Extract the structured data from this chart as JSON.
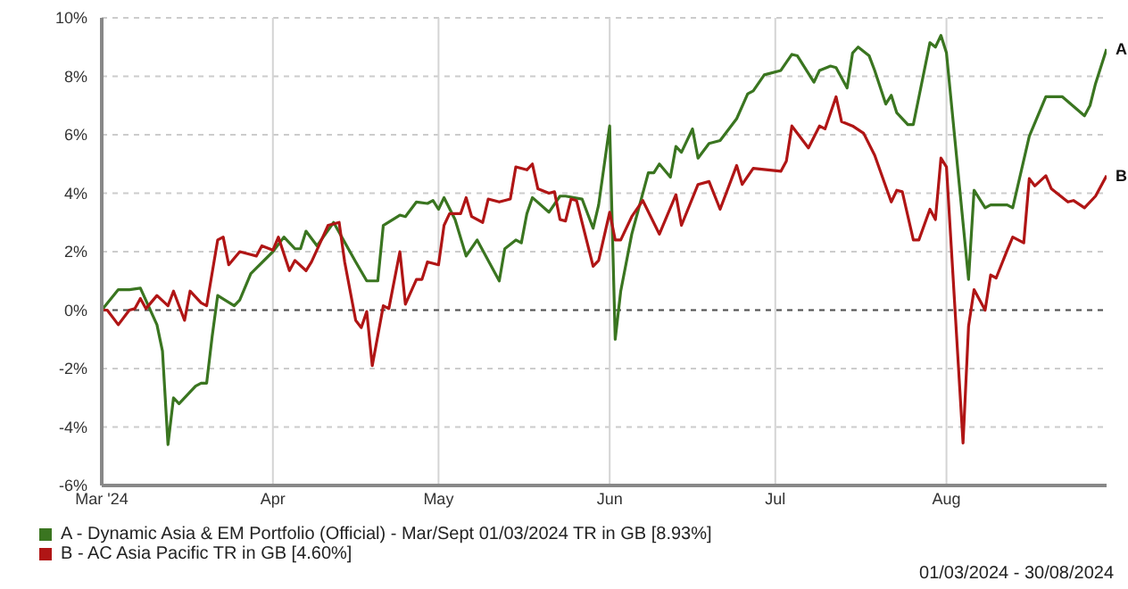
{
  "chart_data": {
    "type": "line",
    "xlim": [
      "2024-03-01",
      "2024-08-30"
    ],
    "xticks": [
      {
        "value": "2024-03-01",
        "label": "Mar '24"
      },
      {
        "value": "2024-04-01",
        "label": "Apr"
      },
      {
        "value": "2024-05-01",
        "label": "May"
      },
      {
        "value": "2024-06-01",
        "label": "Jun"
      },
      {
        "value": "2024-07-01",
        "label": "Jul"
      },
      {
        "value": "2024-08-01",
        "label": "Aug"
      }
    ],
    "ylim": [
      -6,
      10
    ],
    "yticks": [
      {
        "value": -6,
        "label": "-6%"
      },
      {
        "value": -4,
        "label": "-4%"
      },
      {
        "value": -2,
        "label": "-2%"
      },
      {
        "value": 0,
        "label": "0%"
      },
      {
        "value": 2,
        "label": "2%"
      },
      {
        "value": 4,
        "label": "4%"
      },
      {
        "value": 6,
        "label": "6%"
      },
      {
        "value": 8,
        "label": "8%"
      },
      {
        "value": 10,
        "label": "10%"
      }
    ],
    "grid": true,
    "legend": "bottom",
    "marker": "none",
    "line_style": "solid",
    "ref_lines": [
      {
        "axis": "y",
        "value": 0,
        "color": "#555555",
        "line_style": "dashed"
      }
    ],
    "annotations": [
      {
        "text": "A",
        "x": "2024-08-30",
        "y": 8.93
      },
      {
        "text": "B",
        "x": "2024-08-30",
        "y": 4.6
      },
      "01/03/2024 - 30/08/2024"
    ],
    "series": [
      {
        "name": "A - Dynamic Asia & EM Portfolio (Official) - Mar/Sept 01/03/2024 TR in GB [8.93%]",
        "color": "#3a7520",
        "x": [
          "2024-03-01",
          "2024-03-04",
          "2024-03-06",
          "2024-03-08",
          "2024-03-11",
          "2024-03-12",
          "2024-03-13",
          "2024-03-14",
          "2024-03-15",
          "2024-03-18",
          "2024-03-19",
          "2024-03-20",
          "2024-03-21",
          "2024-03-22",
          "2024-03-25",
          "2024-03-26",
          "2024-03-28",
          "2024-04-01",
          "2024-04-03",
          "2024-04-05",
          "2024-04-06",
          "2024-04-07",
          "2024-04-09",
          "2024-04-12",
          "2024-04-16",
          "2024-04-18",
          "2024-04-20",
          "2024-04-21",
          "2024-04-24",
          "2024-04-25",
          "2024-04-27",
          "2024-04-29",
          "2024-04-30",
          "2024-05-01",
          "2024-05-02",
          "2024-05-04",
          "2024-05-06",
          "2024-05-08",
          "2024-05-12",
          "2024-05-13",
          "2024-05-15",
          "2024-05-16",
          "2024-05-17",
          "2024-05-18",
          "2024-05-21",
          "2024-05-23",
          "2024-05-24",
          "2024-05-27",
          "2024-05-29",
          "2024-05-30",
          "2024-06-01",
          "2024-06-02",
          "2024-06-03",
          "2024-06-05",
          "2024-06-08",
          "2024-06-09",
          "2024-06-10",
          "2024-06-12",
          "2024-06-13",
          "2024-06-14",
          "2024-06-16",
          "2024-06-17",
          "2024-06-19",
          "2024-06-21",
          "2024-06-24",
          "2024-06-26",
          "2024-06-27",
          "2024-06-29",
          "2024-07-02",
          "2024-07-04",
          "2024-07-05",
          "2024-07-08",
          "2024-07-09",
          "2024-07-11",
          "2024-07-12",
          "2024-07-14",
          "2024-07-15",
          "2024-07-16",
          "2024-07-18",
          "2024-07-19",
          "2024-07-21",
          "2024-07-22",
          "2024-07-23",
          "2024-07-25",
          "2024-07-26",
          "2024-07-29",
          "2024-07-30",
          "2024-07-31",
          "2024-08-01",
          "2024-08-05",
          "2024-08-06",
          "2024-08-08",
          "2024-08-09",
          "2024-08-12",
          "2024-08-13",
          "2024-08-16",
          "2024-08-19",
          "2024-08-20",
          "2024-08-22",
          "2024-08-26",
          "2024-08-27",
          "2024-08-28",
          "2024-08-30"
        ],
        "values": [
          0,
          0.7,
          0.7,
          0.75,
          -0.5,
          -1.4,
          -4.6,
          -3.0,
          -3.2,
          -2.6,
          -2.5,
          -2.5,
          -0.9,
          0.5,
          0.15,
          0.35,
          1.25,
          2.0,
          2.5,
          2.1,
          2.1,
          2.7,
          2.2,
          3.0,
          1.65,
          1.0,
          1.0,
          2.9,
          3.25,
          3.2,
          3.7,
          3.65,
          3.75,
          3.45,
          3.85,
          3.1,
          1.85,
          2.4,
          1.0,
          2.1,
          2.4,
          2.3,
          3.3,
          3.85,
          3.35,
          3.9,
          3.9,
          3.8,
          2.8,
          3.6,
          6.3,
          -1.0,
          0.65,
          2.6,
          4.7,
          4.7,
          5.0,
          4.55,
          5.6,
          5.4,
          6.2,
          5.2,
          5.7,
          5.8,
          6.55,
          7.4,
          7.5,
          8.05,
          8.2,
          8.75,
          8.7,
          7.8,
          8.2,
          8.35,
          8.3,
          7.6,
          8.8,
          9.0,
          8.7,
          8.2,
          7.05,
          7.35,
          6.75,
          6.35,
          6.35,
          9.15,
          9.0,
          9.4,
          8.8,
          1.05,
          4.1,
          3.5,
          3.6,
          3.6,
          3.5,
          5.95,
          7.3,
          7.3,
          7.3,
          6.65,
          7.0,
          7.75,
          8.93
        ]
      },
      {
        "name": "B - AC Asia Pacific TR in GB [4.60%]",
        "color": "#b01515",
        "x": [
          "2024-03-01",
          "2024-03-02",
          "2024-03-04",
          "2024-03-06",
          "2024-03-07",
          "2024-03-08",
          "2024-03-09",
          "2024-03-11",
          "2024-03-13",
          "2024-03-14",
          "2024-03-16",
          "2024-03-17",
          "2024-03-19",
          "2024-03-20",
          "2024-03-22",
          "2024-03-23",
          "2024-03-24",
          "2024-03-26",
          "2024-03-28",
          "2024-03-29",
          "2024-03-30",
          "2024-04-01",
          "2024-04-02",
          "2024-04-04",
          "2024-04-05",
          "2024-04-07",
          "2024-04-08",
          "2024-04-11",
          "2024-04-13",
          "2024-04-14",
          "2024-04-16",
          "2024-04-17",
          "2024-04-18",
          "2024-04-19",
          "2024-04-21",
          "2024-04-22",
          "2024-04-24",
          "2024-04-25",
          "2024-04-27",
          "2024-04-28",
          "2024-04-29",
          "2024-05-01",
          "2024-05-02",
          "2024-05-03",
          "2024-05-05",
          "2024-05-06",
          "2024-05-07",
          "2024-05-09",
          "2024-05-10",
          "2024-05-12",
          "2024-05-14",
          "2024-05-15",
          "2024-05-17",
          "2024-05-18",
          "2024-05-19",
          "2024-05-21",
          "2024-05-22",
          "2024-05-23",
          "2024-05-24",
          "2024-05-25",
          "2024-05-26",
          "2024-05-29",
          "2024-05-30",
          "2024-06-01",
          "2024-06-02",
          "2024-06-03",
          "2024-06-05",
          "2024-06-07",
          "2024-06-10",
          "2024-06-13",
          "2024-06-14",
          "2024-06-17",
          "2024-06-19",
          "2024-06-21",
          "2024-06-24",
          "2024-06-25",
          "2024-06-27",
          "2024-07-02",
          "2024-07-03",
          "2024-07-04",
          "2024-07-07",
          "2024-07-09",
          "2024-07-10",
          "2024-07-12",
          "2024-07-13",
          "2024-07-15",
          "2024-07-17",
          "2024-07-19",
          "2024-07-22",
          "2024-07-23",
          "2024-07-24",
          "2024-07-26",
          "2024-07-27",
          "2024-07-29",
          "2024-07-30",
          "2024-07-31",
          "2024-08-01",
          "2024-08-04",
          "2024-08-05",
          "2024-08-06",
          "2024-08-08",
          "2024-08-09",
          "2024-08-10",
          "2024-08-12",
          "2024-08-13",
          "2024-08-15",
          "2024-08-16",
          "2024-08-17",
          "2024-08-19",
          "2024-08-20",
          "2024-08-23",
          "2024-08-24",
          "2024-08-26",
          "2024-08-28",
          "2024-08-30"
        ],
        "values": [
          0,
          0,
          -0.5,
          0,
          0.05,
          0.4,
          0.05,
          0.5,
          0.15,
          0.65,
          -0.35,
          0.65,
          0.25,
          0.15,
          2.4,
          2.5,
          1.55,
          2.0,
          1.9,
          1.85,
          2.2,
          2.05,
          2.5,
          1.35,
          1.7,
          1.35,
          1.65,
          2.9,
          3.0,
          1.65,
          -0.35,
          -0.6,
          -0.05,
          -1.9,
          0.15,
          0.05,
          2.0,
          0.2,
          1.05,
          1.05,
          1.65,
          1.55,
          2.9,
          3.3,
          3.3,
          3.85,
          3.2,
          3.0,
          3.8,
          3.7,
          3.8,
          4.9,
          4.8,
          5.0,
          4.15,
          4.0,
          4.05,
          3.1,
          3.05,
          3.8,
          3.75,
          1.5,
          1.7,
          3.35,
          2.4,
          2.4,
          3.2,
          3.75,
          2.6,
          3.95,
          2.9,
          4.3,
          4.4,
          3.45,
          4.95,
          4.3,
          4.85,
          4.75,
          5.1,
          6.3,
          5.55,
          6.3,
          6.2,
          7.3,
          6.45,
          6.3,
          6.05,
          5.3,
          3.7,
          4.1,
          4.05,
          2.4,
          2.4,
          3.45,
          3.1,
          5.2,
          4.9,
          -4.55,
          -0.55,
          0.7,
          0,
          1.2,
          1.1,
          2.05,
          2.5,
          2.3,
          4.5,
          4.25,
          4.6,
          4.15,
          3.7,
          3.75,
          3.5,
          3.9,
          4.6
        ]
      }
    ]
  }
}
